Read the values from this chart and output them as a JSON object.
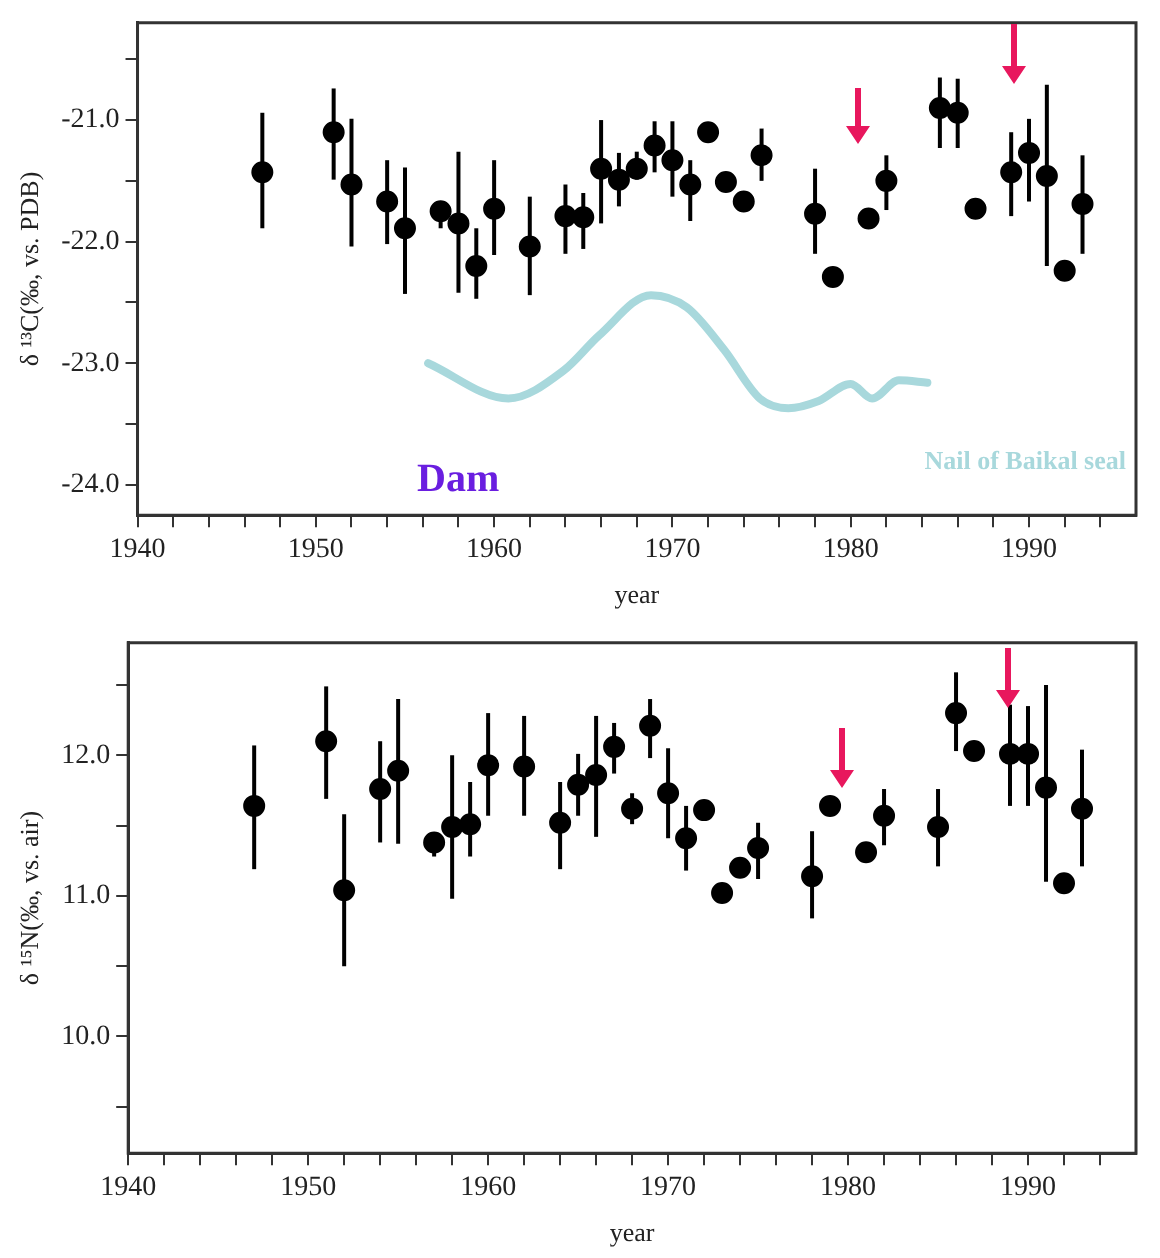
{
  "chart_data": [
    {
      "type": "scatter",
      "xlabel": "year",
      "ylabel": "δ ¹³C(‰, vs. PDB)",
      "xlim": [
        1940,
        1996
      ],
      "ylim": [
        -24.25,
        -20.2
      ],
      "xticks": [
        1940,
        {
          "value": 1942,
          "label": null
        },
        {
          "value": 1944,
          "label": null
        },
        {
          "value": 1946,
          "label": null
        },
        {
          "value": 1948,
          "label": null
        },
        1950,
        {
          "value": 1952,
          "label": null
        },
        {
          "value": 1954,
          "label": null
        },
        {
          "value": 1956,
          "label": null
        },
        {
          "value": 1958,
          "label": null
        },
        1960,
        {
          "value": 1962,
          "label": null
        },
        {
          "value": 1964,
          "label": null
        },
        {
          "value": 1966,
          "label": null
        },
        {
          "value": 1968,
          "label": null
        },
        1970,
        {
          "value": 1972,
          "label": null
        },
        {
          "value": 1974,
          "label": null
        },
        {
          "value": 1976,
          "label": null
        },
        {
          "value": 1978,
          "label": null
        },
        1980,
        {
          "value": 1982,
          "label": null
        },
        {
          "value": 1984,
          "label": null
        },
        {
          "value": 1986,
          "label": null
        },
        {
          "value": 1988,
          "label": null
        },
        1990,
        {
          "value": 1992,
          "label": null
        },
        {
          "value": 1994,
          "label": null
        }
      ],
      "yticks": [
        {
          "value": -24,
          "label": "-24.0"
        },
        {
          "value": -23.5,
          "label": null
        },
        {
          "value": -23,
          "label": "-23.0"
        },
        {
          "value": -22.5,
          "label": null
        },
        {
          "value": -22,
          "label": "-22.0"
        },
        {
          "value": -21.5,
          "label": null
        },
        {
          "value": -21,
          "label": "-21.0"
        },
        {
          "value": -20.5,
          "label": null
        }
      ],
      "grid": false,
      "legend": false,
      "annotations": [
        "Dam"
      ],
      "series": [
        {
          "marker": "circle",
          "color": "#000000",
          "x": [
            1947,
            1951,
            1952,
            1954,
            1955,
            1957,
            1958,
            1959,
            1960,
            1962,
            1964,
            1965,
            1966,
            1967,
            1968,
            1969,
            1970,
            1971,
            1972,
            1973,
            1974,
            1975,
            1978,
            1979,
            1981,
            1982,
            1985,
            1986,
            1987,
            1989,
            1990,
            1991,
            1992,
            1993
          ],
          "values": [
            -21.43,
            -21.1,
            -21.53,
            -21.67,
            -21.89,
            -21.75,
            -21.85,
            -22.2,
            -21.73,
            -22.04,
            -21.79,
            -21.8,
            -21.4,
            -21.49,
            -21.4,
            -21.21,
            -21.33,
            -21.53,
            -21.1,
            -21.51,
            -21.67,
            -21.29,
            -21.77,
            -22.29,
            -21.81,
            -21.5,
            -20.9,
            -20.94,
            -21.73,
            -21.43,
            -21.27,
            -21.46,
            -22.24,
            -21.69
          ],
          "errors": [
            [
              -21.89,
              -20.94
            ],
            [
              -21.49,
              -20.74
            ],
            [
              -22.04,
              -20.99
            ],
            [
              -22.02,
              -21.33
            ],
            [
              -22.43,
              -21.39
            ],
            [
              -21.89,
              -21.69
            ],
            [
              -22.42,
              -21.26
            ],
            [
              -22.47,
              -21.89
            ],
            [
              -22.11,
              -21.33
            ],
            [
              -22.44,
              -21.63
            ],
            [
              -22.1,
              -21.53
            ],
            [
              -22.06,
              -21.6
            ],
            [
              -21.85,
              -21.0
            ],
            [
              -21.71,
              -21.27
            ],
            [
              -21.49,
              -21.26
            ],
            [
              -21.43,
              -21.01
            ],
            [
              -21.63,
              -21.01
            ],
            [
              -21.83,
              -21.33
            ],
            null,
            null,
            null,
            [
              -21.5,
              -21.07
            ],
            [
              -22.1,
              -21.4
            ],
            null,
            null,
            [
              -21.74,
              -21.29
            ],
            [
              -21.23,
              -20.65
            ],
            [
              -21.23,
              -20.66
            ],
            null,
            [
              -21.79,
              -21.1
            ],
            [
              -21.67,
              -20.99
            ],
            [
              -22.2,
              -20.71
            ],
            null,
            [
              -22.1,
              -21.29
            ]
          ]
        },
        {
          "type": "line",
          "marker": "none",
          "name": "Nail of Baikal seal",
          "color": "#a8d8dc",
          "x": [
            1956.3,
            1960.8,
            1963.9,
            1965.9,
            1968.8,
            1970.8,
            1972.9,
            1974.9,
            1976.5,
            1978.2,
            1980,
            1981.2,
            1982.7,
            1984.3
          ],
          "values": [
            -23.0,
            -23.29,
            -23.06,
            -22.77,
            -22.44,
            -22.54,
            -22.89,
            -23.29,
            -23.37,
            -23.31,
            -23.17,
            -23.29,
            -23.14,
            -23.16
          ]
        }
      ]
    },
    {
      "type": "scatter",
      "xlabel": "year",
      "ylabel": "δ ¹⁵N(‰, vs. air)",
      "xlim": [
        1940,
        1996
      ],
      "ylim": [
        9.17,
        12.8
      ],
      "xticks": [
        1940,
        {
          "value": 1942,
          "label": null
        },
        {
          "value": 1944,
          "label": null
        },
        {
          "value": 1946,
          "label": null
        },
        {
          "value": 1948,
          "label": null
        },
        1950,
        {
          "value": 1952,
          "label": null
        },
        {
          "value": 1954,
          "label": null
        },
        {
          "value": 1956,
          "label": null
        },
        {
          "value": 1958,
          "label": null
        },
        1960,
        {
          "value": 1962,
          "label": null
        },
        {
          "value": 1964,
          "label": null
        },
        {
          "value": 1966,
          "label": null
        },
        {
          "value": 1968,
          "label": null
        },
        1970,
        {
          "value": 1972,
          "label": null
        },
        {
          "value": 1974,
          "label": null
        },
        {
          "value": 1976,
          "label": null
        },
        {
          "value": 1978,
          "label": null
        },
        1980,
        {
          "value": 1982,
          "label": null
        },
        {
          "value": 1984,
          "label": null
        },
        {
          "value": 1986,
          "label": null
        },
        {
          "value": 1988,
          "label": null
        },
        1990,
        {
          "value": 1992,
          "label": null
        },
        {
          "value": 1994,
          "label": null
        }
      ],
      "yticks": [
        {
          "value": 9.5,
          "label": null
        },
        {
          "value": 10,
          "label": "10.0"
        },
        {
          "value": 10.5,
          "label": null
        },
        {
          "value": 11,
          "label": "11.0"
        },
        {
          "value": 11.5,
          "label": null
        },
        {
          "value": 12,
          "label": "12.0"
        },
        {
          "value": 12.5,
          "label": null
        }
      ],
      "grid": false,
      "legend": false,
      "series": [
        {
          "marker": "circle",
          "color": "#000000",
          "x": [
            1947,
            1951,
            1952,
            1954,
            1955,
            1957,
            1958,
            1959,
            1960,
            1962,
            1964,
            1965,
            1966,
            1967,
            1968,
            1969,
            1970,
            1971,
            1972,
            1973,
            1974,
            1975,
            1978,
            1979,
            1981,
            1982,
            1985,
            1986,
            1987,
            1989,
            1990,
            1991,
            1992,
            1993
          ],
          "values": [
            11.64,
            12.1,
            11.04,
            11.76,
            11.89,
            11.38,
            11.49,
            11.51,
            11.93,
            11.92,
            11.52,
            11.79,
            11.86,
            12.06,
            11.62,
            12.21,
            11.73,
            11.41,
            11.61,
            11.02,
            11.2,
            11.34,
            11.14,
            11.64,
            11.31,
            11.57,
            11.49,
            12.3,
            12.03,
            12.01,
            12.01,
            11.77,
            11.09,
            11.62
          ],
          "errors": [
            [
              11.19,
              12.07
            ],
            [
              11.69,
              12.49
            ],
            [
              10.5,
              11.58
            ],
            [
              11.38,
              12.1
            ],
            [
              11.37,
              12.4
            ],
            [
              11.28,
              11.43
            ],
            [
              10.98,
              12.0
            ],
            [
              11.28,
              11.81
            ],
            [
              11.57,
              12.3
            ],
            [
              11.57,
              12.28
            ],
            [
              11.19,
              11.81
            ],
            [
              11.57,
              12.01
            ],
            [
              11.42,
              12.28
            ],
            [
              11.87,
              12.23
            ],
            [
              11.51,
              11.73
            ],
            [
              11.98,
              12.4
            ],
            [
              11.41,
              12.05
            ],
            [
              11.18,
              11.64
            ],
            null,
            null,
            null,
            [
              11.12,
              11.52
            ],
            [
              10.84,
              11.46
            ],
            null,
            null,
            [
              11.36,
              11.76
            ],
            [
              11.21,
              11.76
            ],
            [
              12.03,
              12.59
            ],
            null,
            [
              11.64,
              12.36
            ],
            [
              11.64,
              12.35
            ],
            [
              11.1,
              12.5
            ],
            null,
            [
              11.21,
              12.04
            ]
          ]
        }
      ]
    }
  ]
}
